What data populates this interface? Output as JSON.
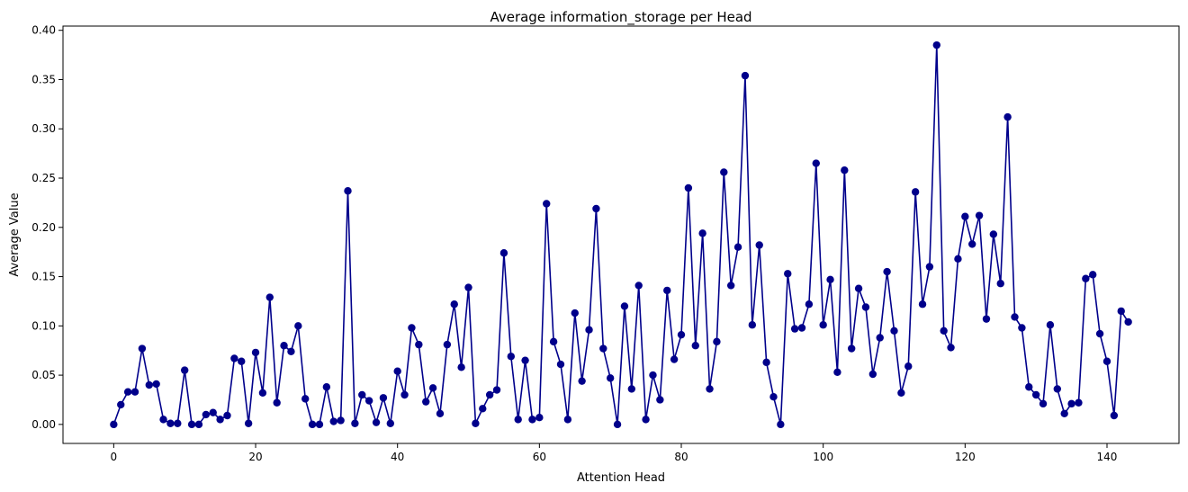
{
  "chart_data": {
    "type": "line",
    "title": "Average information_storage per Head",
    "xlabel": "Attention Head",
    "ylabel": "Average Value",
    "xlim": [
      -7.15,
      150.15
    ],
    "ylim": [
      -0.0193,
      0.4043
    ],
    "x_ticks": [
      0,
      20,
      40,
      60,
      80,
      100,
      120,
      140
    ],
    "x_tick_labels": [
      "0",
      "20",
      "40",
      "60",
      "80",
      "100",
      "120",
      "140"
    ],
    "y_ticks": [
      0.0,
      0.05,
      0.1,
      0.15,
      0.2,
      0.25,
      0.3,
      0.35,
      0.4
    ],
    "y_tick_labels": [
      "0.00",
      "0.05",
      "0.10",
      "0.15",
      "0.20",
      "0.25",
      "0.30",
      "0.35",
      "0.40"
    ],
    "grid": false,
    "marker": "circle",
    "color": "#00008b",
    "x": [
      0,
      1,
      2,
      3,
      4,
      5,
      6,
      7,
      8,
      9,
      10,
      11,
      12,
      13,
      14,
      15,
      16,
      17,
      18,
      19,
      20,
      21,
      22,
      23,
      24,
      25,
      26,
      27,
      28,
      29,
      30,
      31,
      32,
      33,
      34,
      35,
      36,
      37,
      38,
      39,
      40,
      41,
      42,
      43,
      44,
      45,
      46,
      47,
      48,
      49,
      50,
      51,
      52,
      53,
      54,
      55,
      56,
      57,
      58,
      59,
      60,
      61,
      62,
      63,
      64,
      65,
      66,
      67,
      68,
      69,
      70,
      71,
      72,
      73,
      74,
      75,
      76,
      77,
      78,
      79,
      80,
      81,
      82,
      83,
      84,
      85,
      86,
      87,
      88,
      89,
      90,
      91,
      92,
      93,
      94,
      95,
      96,
      97,
      98,
      99,
      100,
      101,
      102,
      103,
      104,
      105,
      106,
      107,
      108,
      109,
      110,
      111,
      112,
      113,
      114,
      115,
      116,
      117,
      118,
      119,
      120,
      121,
      122,
      123,
      124,
      125,
      126,
      127,
      128,
      129,
      130,
      131,
      132,
      133,
      134,
      135,
      136,
      137,
      138,
      139,
      140,
      141,
      142,
      143
    ],
    "values": [
      0.0,
      0.02,
      0.033,
      0.033,
      0.077,
      0.04,
      0.041,
      0.005,
      0.001,
      0.001,
      0.055,
      0.0,
      0.0,
      0.01,
      0.012,
      0.005,
      0.009,
      0.067,
      0.064,
      0.001,
      0.073,
      0.032,
      0.129,
      0.022,
      0.08,
      0.074,
      0.1,
      0.026,
      0.0,
      0.0,
      0.038,
      0.003,
      0.004,
      0.237,
      0.001,
      0.03,
      0.024,
      0.002,
      0.027,
      0.001,
      0.054,
      0.03,
      0.098,
      0.081,
      0.023,
      0.037,
      0.011,
      0.081,
      0.122,
      0.058,
      0.139,
      0.001,
      0.016,
      0.03,
      0.035,
      0.174,
      0.069,
      0.005,
      0.065,
      0.005,
      0.007,
      0.224,
      0.084,
      0.061,
      0.005,
      0.113,
      0.044,
      0.096,
      0.219,
      0.077,
      0.047,
      0.0,
      0.12,
      0.036,
      0.141,
      0.005,
      0.05,
      0.025,
      0.136,
      0.066,
      0.091,
      0.24,
      0.08,
      0.194,
      0.036,
      0.084,
      0.256,
      0.141,
      0.18,
      0.354,
      0.101,
      0.182,
      0.063,
      0.028,
      0.0,
      0.153,
      0.097,
      0.098,
      0.122,
      0.265,
      0.101,
      0.147,
      0.053,
      0.258,
      0.077,
      0.138,
      0.119,
      0.051,
      0.088,
      0.155,
      0.095,
      0.032,
      0.059,
      0.236,
      0.122,
      0.16,
      0.385,
      0.095,
      0.078,
      0.168,
      0.211,
      0.183,
      0.212,
      0.107,
      0.193,
      0.143,
      0.312,
      0.109,
      0.098,
      0.038,
      0.03,
      0.021,
      0.101,
      0.036,
      0.011,
      0.021,
      0.022,
      0.148,
      0.152,
      0.092,
      0.064,
      0.009,
      0.115,
      0.104
    ]
  }
}
